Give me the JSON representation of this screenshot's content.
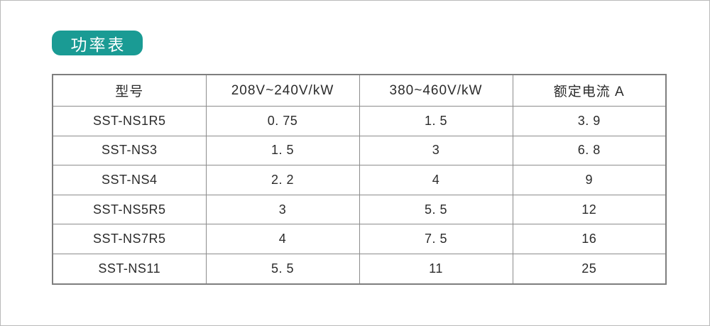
{
  "page": {
    "background_color": "#ffffff",
    "border_color": "#b9b9b9"
  },
  "title_badge": {
    "label": "功率表",
    "bg_color": "#1a9b94",
    "text_color": "#ffffff"
  },
  "table": {
    "border_color": "#8c8c8c",
    "outer_border_color": "#7e7e7e",
    "columns": [
      "型号",
      "208V~240V/kW",
      "380~460V/kW",
      "额定电流 A"
    ],
    "rows": [
      [
        "SST-NS1R5",
        "0. 75",
        "1. 5",
        "3. 9"
      ],
      [
        "SST-NS3",
        "1. 5",
        "3",
        "6. 8"
      ],
      [
        "SST-NS4",
        "2. 2",
        "4",
        "9"
      ],
      [
        "SST-NS5R5",
        "3",
        "5. 5",
        "12"
      ],
      [
        "SST-NS7R5",
        "4",
        "7. 5",
        "16"
      ],
      [
        "SST-NS11",
        "5. 5",
        "11",
        "25"
      ]
    ]
  },
  "chart_data": {
    "type": "table",
    "title": "功率表",
    "columns": [
      "型号",
      "208V~240V/kW",
      "380~460V/kW",
      "额定电流 A"
    ],
    "models": [
      "SST-NS1R5",
      "SST-NS3",
      "SST-NS4",
      "SST-NS5R5",
      "SST-NS7R5",
      "SST-NS11"
    ],
    "series": [
      {
        "name": "208V~240V/kW",
        "values": [
          0.75,
          1.5,
          2.2,
          3,
          4,
          5.5
        ]
      },
      {
        "name": "380~460V/kW",
        "values": [
          1.5,
          3,
          4,
          5.5,
          7.5,
          11
        ]
      },
      {
        "name": "额定电流 A",
        "values": [
          3.9,
          6.8,
          9,
          12,
          16,
          25
        ]
      }
    ]
  }
}
